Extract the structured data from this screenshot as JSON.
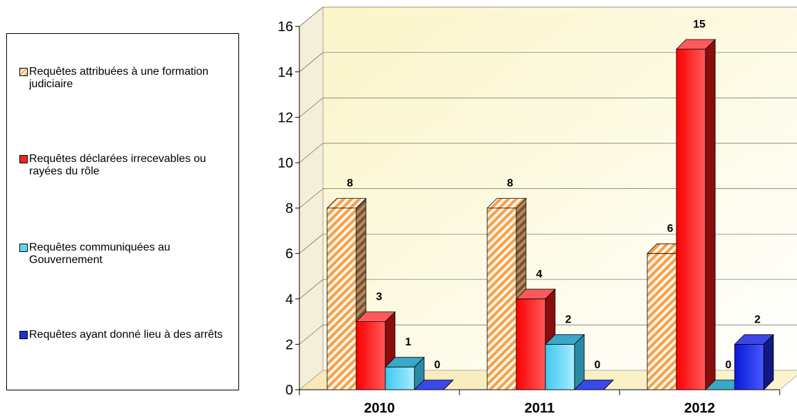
{
  "chart_data": {
    "type": "bar",
    "categories": [
      "2010",
      "2011",
      "2012"
    ],
    "series": [
      {
        "name": "Requêtes attribuées à une formation judiciaire",
        "values": [
          8,
          8,
          6
        ],
        "color": "#f7b26a",
        "pattern": "diagonal-hatch"
      },
      {
        "name": "Requêtes déclarées irrecevables ou rayées du rôle",
        "values": [
          3,
          4,
          15
        ],
        "color": "#ff2a2a"
      },
      {
        "name": "Requêtes communiquées au Gouvernement",
        "values": [
          1,
          2,
          0
        ],
        "color": "#5fd6f5"
      },
      {
        "name": "Requêtes ayant donné lieu à des arrêts",
        "values": [
          0,
          0,
          2
        ],
        "color": "#1f2fe0"
      }
    ],
    "data_labels": [
      [
        "8",
        "8",
        "6"
      ],
      [
        "3",
        "4",
        "15"
      ],
      [
        "1",
        "2",
        "0"
      ],
      [
        "0",
        "0",
        "2"
      ]
    ],
    "yticks": [
      "0",
      "2",
      "4",
      "6",
      "8",
      "10",
      "12",
      "14",
      "16"
    ],
    "ylim": [
      0,
      16
    ],
    "grid": true,
    "legend_position": "left",
    "title": "",
    "xlabel": "",
    "ylabel": ""
  }
}
